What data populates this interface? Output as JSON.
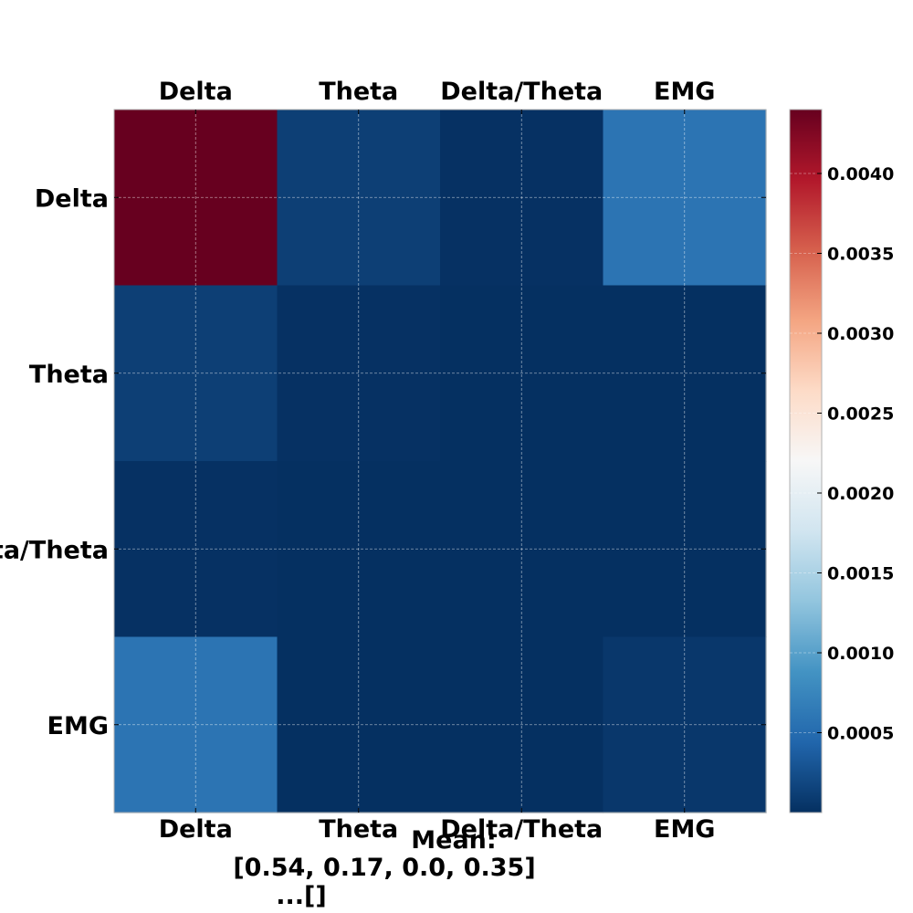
{
  "chart_data": {
    "type": "heatmap",
    "rows": [
      "Delta",
      "Theta",
      "Delta/Theta",
      "EMG"
    ],
    "columns": [
      "Delta",
      "Theta",
      "Delta/Theta",
      "EMG"
    ],
    "values": [
      [
        0.0044,
        0.00012,
        1e-05,
        0.00058
      ],
      [
        0.00012,
        1e-05,
        0.0,
        0.0
      ],
      [
        1e-05,
        0.0,
        0.0,
        0.0
      ],
      [
        0.00058,
        0.0,
        0.0,
        6e-05
      ]
    ],
    "colorscale": "RdBu_r",
    "colorbar": {
      "range": [
        0.0,
        0.0044
      ],
      "ticks": [
        0.0005,
        0.001,
        0.0015,
        0.002,
        0.0025,
        0.003,
        0.0035,
        0.004
      ],
      "tick_labels": [
        "0.0005",
        "0.0010",
        "0.0015",
        "0.0020",
        "0.0025",
        "0.0030",
        "0.0035",
        "0.0040"
      ]
    },
    "grid": true,
    "caption_lines": [
      "Mean:",
      "[0.54, 0.17, 0.0, 0.35]",
      "...[]"
    ]
  }
}
